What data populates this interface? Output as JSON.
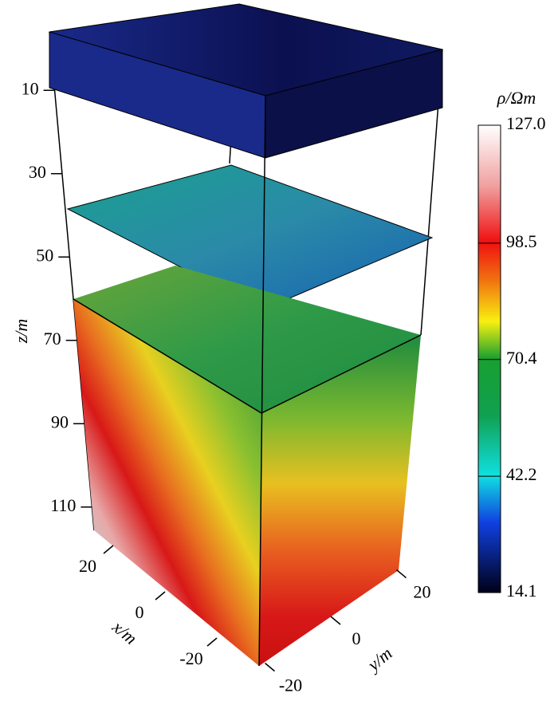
{
  "chart_data": {
    "type": "volume",
    "z_label": "z/m",
    "x_label": "x/m",
    "y_label": "y/m",
    "zlim": [
      0,
      120
    ],
    "zticks": [
      10,
      30,
      50,
      70,
      90,
      110
    ],
    "xlim": [
      -30,
      30
    ],
    "xticks": [
      20,
      0,
      -20
    ],
    "ylim": [
      -30,
      30
    ],
    "yticks": [
      20,
      0,
      -20
    ],
    "colorbar": {
      "title": "ρ/Ωm",
      "lim": [
        14.1,
        127
      ],
      "ticks": [
        {
          "value": 127,
          "label": "127.0"
        },
        98.5,
        70.4,
        42.2,
        14.1
      ]
    }
  }
}
